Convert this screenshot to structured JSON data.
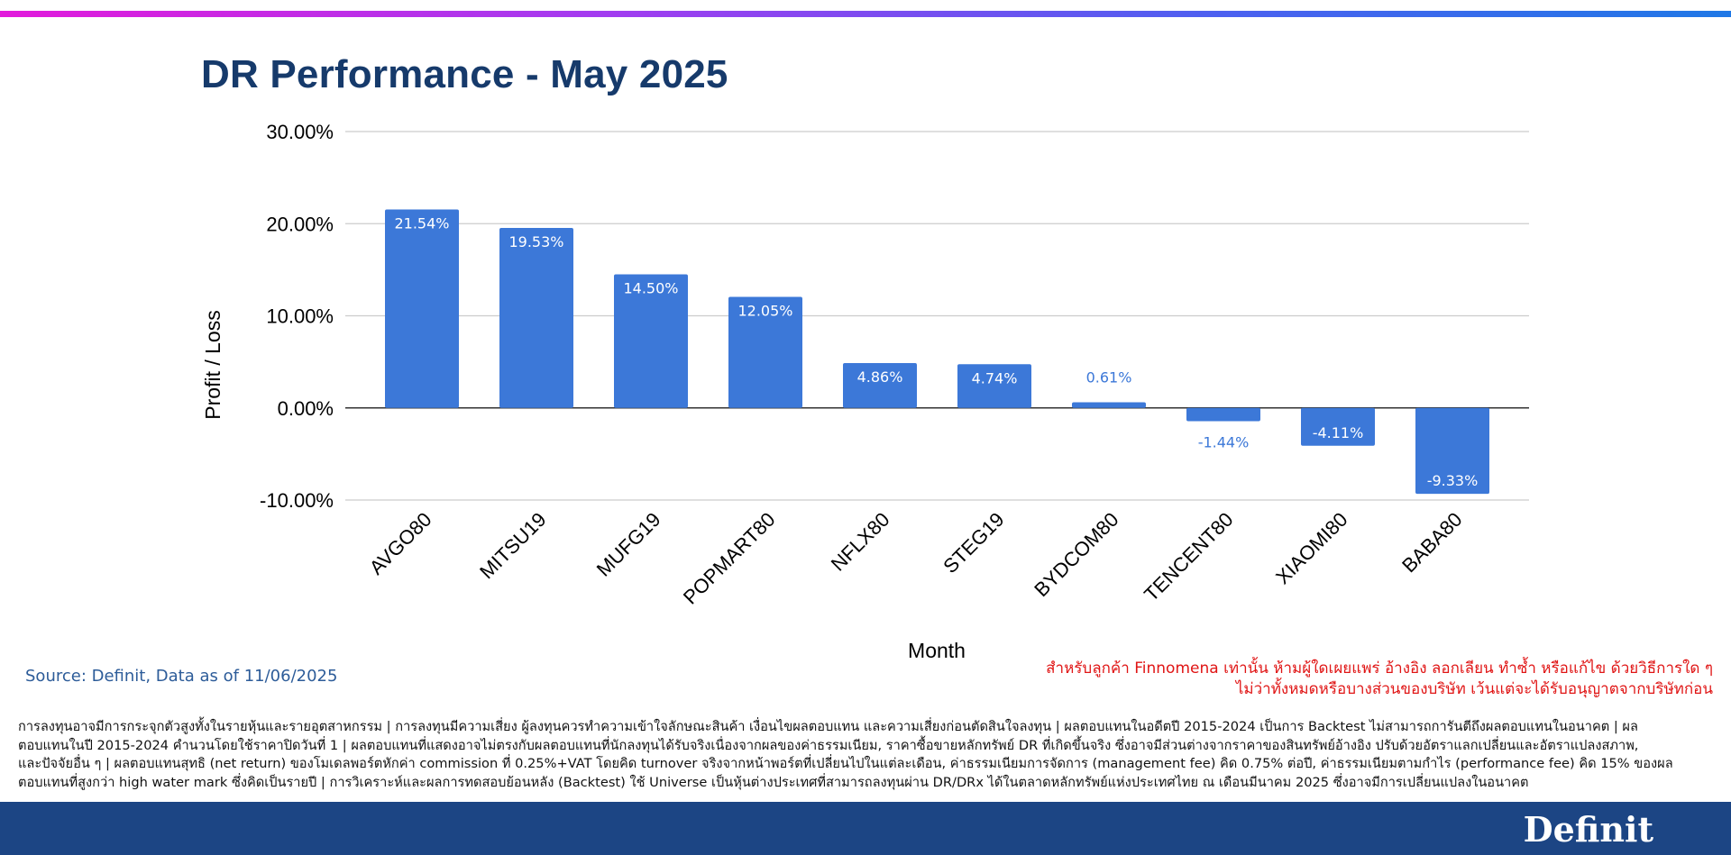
{
  "header": {
    "title": "DR Performance - May 2025"
  },
  "chart_data": {
    "type": "bar",
    "title": "DR Performance - May 2025",
    "xlabel": "Month",
    "ylabel": "Profit / Loss",
    "ylim": [
      -10,
      30
    ],
    "yticks": [
      "30.00%",
      "20.00%",
      "10.00%",
      "0.00%",
      "-10.00%"
    ],
    "ytick_values": [
      30,
      20,
      10,
      0,
      -10
    ],
    "grid": true,
    "categories": [
      "AVGO80",
      "MITSU19",
      "MUFG19",
      "POPMART80",
      "NFLX80",
      "STEG19",
      "BYDCOM80",
      "TENCENT80",
      "XIAOMI80",
      "BABA80"
    ],
    "values": [
      21.54,
      19.53,
      14.5,
      12.05,
      4.86,
      4.74,
      0.61,
      -1.44,
      -4.11,
      -9.33
    ],
    "data_labels": [
      "21.54%",
      "19.53%",
      "14.50%",
      "12.05%",
      "4.86%",
      "4.74%",
      "0.61%",
      "-1.44%",
      "-4.11%",
      "-9.33%"
    ],
    "bar_color": "#3c78d8"
  },
  "source": "Source: Definit, Data as of 11/06/2025",
  "notice": {
    "line1": "สำหรับลูกค้า Finnomena เท่านั้น ห้ามผู้ใดเผยแพร่ อ้างอิง ลอกเลียน ทำซ้ำ หรือแก้ไข ด้วยวิธีการใด ๆ",
    "line2": "ไม่ว่าทั้งหมดหรือบางส่วนของบริษัท เว้นแต่จะได้รับอนุญาตจากบริษัทก่อน"
  },
  "disclaimer": {
    "line1": "การลงทุนอาจมีการกระจุกตัวสูงทั้งในรายหุ้นและรายอุตสาหกรรม | การลงทุนมีความเสี่ยง ผู้ลงทุนควรทำความเข้าใจลักษณะสินค้า เงื่อนไขผลตอบแทน และความเสี่ยงก่อนตัดสินใจลงทุน | ผลตอบแทนในอดีตปี 2015-2024 เป็นการ Backtest ไม่สามารถการันตีถึงผลตอบแทนในอนาคต | ผล",
    "line2": "ตอบแทนในปี 2015-2024 คำนวนโดยใช้ราคาปิดวันที่ 1 | ผลตอบแทนที่แสดงอาจไม่ตรงกับผลตอบแทนที่นักลงทุนได้รับจริงเนื่องจากผลของค่าธรรมเนียม, ราคาซื้อขายหลักทรัพย์ DR ที่เกิดขึ้นจริง ซึ่งอาจมีส่วนต่างจากราคาของสินทรัพย์อ้างอิง ปรับด้วยอัตราแลกเปลี่ยนและอัตราแปลงสภาพ,",
    "line3": "และปัจจัยอื่น ๆ  | ผลตอบแทนสุทธิ (net return) ของโมเดลพอร์ตหักค่า commission ที่ 0.25%+VAT โดยคิด turnover จริงจากหน้าพอร์ตที่เปลี่ยนไปในแต่ละเดือน, ค่าธรรมเนียมการจัดการ (management fee) คิด 0.75% ต่อปี, ค่าธรรมเนียมตามกำไร (performance fee) คิด 15% ของผล",
    "line4": "ตอบแทนที่สูงกว่า high water mark ซึ่งคิดเป็นรายปี | การวิเคราะห์และผลการทดสอบย้อนหลัง (Backtest) ใช้ Universe เป็นหุ้นต่างประเทศที่สามารถลงทุนผ่าน DR/DRx ได้ในตลาดหลักทรัพย์แห่งประเทศไทย ณ เดือนมีนาคม 2025 ซึ่งอาจมีการเปลี่ยนแปลงในอนาคต"
  },
  "footer": {
    "brand": "Definit"
  }
}
